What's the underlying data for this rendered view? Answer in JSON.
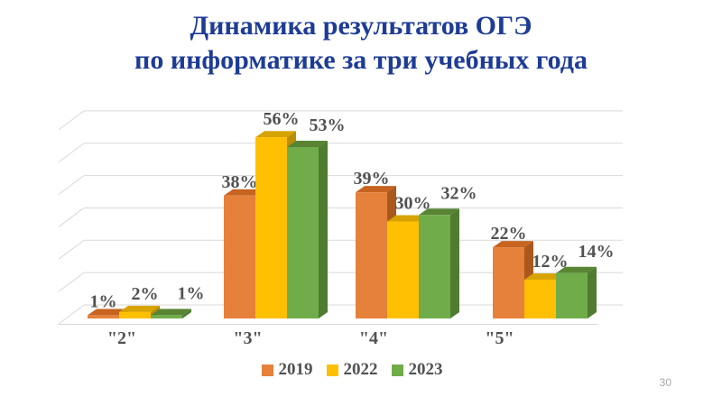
{
  "title": {
    "line1": "Динамика результатов ОГЭ",
    "line2": "по информатике за три учебных года",
    "color": "#1e3c96"
  },
  "page_number": "30",
  "chart_data": {
    "type": "bar",
    "variant": "3d-clustered-column",
    "title": "",
    "xlabel": "",
    "ylabel": "",
    "categories": [
      "\"2\"",
      "\"3\"",
      "\"4\"",
      "\"5\""
    ],
    "series": [
      {
        "name": "2019",
        "color": "#e5813a",
        "color_top": "#c66420",
        "color_side": "#aa581e",
        "values": [
          1,
          38,
          39,
          22
        ]
      },
      {
        "name": "2022",
        "color": "#ffc003",
        "color_top": "#d7a303",
        "color_side": "#ba8e02",
        "values": [
          2,
          56,
          30,
          12
        ]
      },
      {
        "name": "2023",
        "color": "#70ad4a",
        "color_top": "#588434",
        "color_side": "#4f7c31",
        "values": [
          1,
          53,
          32,
          14
        ]
      }
    ],
    "data_label_suffix": "%",
    "data_label_color": "#515151",
    "category_label_color": "#515151",
    "ylim": [
      0,
      60
    ],
    "gridline_step": 10,
    "grid": true,
    "gridline_color": "#d9d9d9",
    "legend_position": "bottom",
    "legend_text_color": "#515151",
    "background": "#ffffff"
  }
}
